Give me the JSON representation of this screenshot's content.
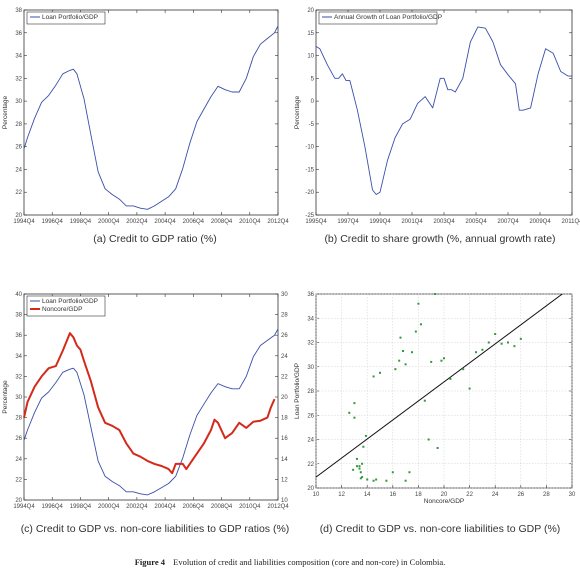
{
  "figure": {
    "label": "Figure 4",
    "text": "Evolution of credit and liabilities composition (core and non-core) in Colombia."
  },
  "colors": {
    "blue": "#3a4fa8",
    "red": "#d42a1c",
    "green": "#2f9a3c",
    "black": "#111111",
    "right_axis": "#d42a1c"
  },
  "chart_data": [
    {
      "id": "a",
      "type": "line",
      "caption": "(a) Credit to GDP ratio (%)",
      "ylabel": "Percentage",
      "xticks": [
        "1994Q4",
        "1996Q4",
        "1998Q4",
        "2000Q4",
        "2002Q4",
        "2004Q4",
        "2006Q4",
        "2008Q4",
        "2010Q4",
        "2012Q4"
      ],
      "xlim": [
        1994.75,
        2012.75
      ],
      "ylim": [
        20,
        38
      ],
      "yticks": [
        20,
        22,
        24,
        26,
        28,
        30,
        32,
        34,
        36,
        38
      ],
      "legend": [
        "Loan Portfolio/GDP"
      ],
      "series": [
        {
          "name": "Loan Portfolio/GDP",
          "color": "blue",
          "x": [
            1994.75,
            1995.0,
            1995.5,
            1996.0,
            1996.5,
            1997.0,
            1997.5,
            1998.0,
            1998.25,
            1998.5,
            1999.0,
            1999.5,
            2000.0,
            2000.5,
            2001.0,
            2001.5,
            2002.0,
            2002.5,
            2003.0,
            2003.5,
            2004.0,
            2004.5,
            2005.0,
            2005.5,
            2006.0,
            2006.5,
            2007.0,
            2007.5,
            2008.0,
            2008.5,
            2009.0,
            2009.5,
            2010.0,
            2010.5,
            2011.0,
            2011.5,
            2012.0,
            2012.5,
            2012.75
          ],
          "y": [
            25.8,
            26.8,
            28.5,
            29.9,
            30.5,
            31.4,
            32.4,
            32.7,
            32.8,
            32.4,
            30.2,
            27.0,
            23.8,
            22.3,
            21.8,
            21.4,
            20.8,
            20.8,
            20.6,
            20.5,
            20.8,
            21.2,
            21.6,
            22.3,
            24.1,
            26.3,
            28.2,
            29.3,
            30.4,
            31.3,
            31.0,
            30.8,
            30.8,
            32.0,
            33.9,
            35.0,
            35.5,
            36.0,
            36.6
          ]
        }
      ]
    },
    {
      "id": "b",
      "type": "line",
      "caption": "(b) Credit to share growth (%, annual growth rate)",
      "ylabel": "Percentage",
      "xticks": [
        "1995Q4",
        "1997Q4",
        "1999Q4",
        "2001Q4",
        "2003Q4",
        "2005Q4",
        "2007Q4",
        "2009Q4",
        "2011Q4"
      ],
      "xlim": [
        1995.75,
        2012.75
      ],
      "ylim": [
        -25,
        20
      ],
      "yticks": [
        -25,
        -20,
        -15,
        -10,
        -5,
        0,
        5,
        10,
        15,
        20
      ],
      "legend": [
        "Annual Growth of Loan Portfolio/GDP"
      ],
      "series": [
        {
          "name": "Annual Growth of Loan Portfolio/GDP",
          "color": "blue",
          "x": [
            1995.75,
            1996.0,
            1996.5,
            1997.0,
            1997.25,
            1997.5,
            1997.75,
            1998.0,
            1998.5,
            1999.0,
            1999.5,
            1999.75,
            2000.0,
            2000.5,
            2001.0,
            2001.5,
            2002.0,
            2002.5,
            2003.0,
            2003.5,
            2004.0,
            2004.25,
            2004.5,
            2004.75,
            2005.0,
            2005.5,
            2006.0,
            2006.5,
            2007.0,
            2007.5,
            2008.0,
            2008.5,
            2009.0,
            2009.25,
            2009.5,
            2010.0,
            2010.5,
            2011.0,
            2011.5,
            2012.0,
            2012.5,
            2012.75
          ],
          "y": [
            12.0,
            11.5,
            8.0,
            5.0,
            5.0,
            6.0,
            4.5,
            4.5,
            -2.0,
            -10.0,
            -19.5,
            -20.5,
            -20.0,
            -13.0,
            -8.0,
            -5.0,
            -4.0,
            -0.5,
            1.0,
            -1.5,
            5.0,
            5.0,
            2.5,
            2.5,
            2.0,
            5.0,
            13.0,
            16.3,
            16.0,
            13.0,
            8.0,
            5.8,
            3.8,
            -2.0,
            -2.0,
            -1.5,
            6.0,
            11.5,
            10.5,
            6.5,
            5.5,
            5.5
          ]
        }
      ]
    },
    {
      "id": "c",
      "type": "line",
      "caption": "(c) Credit to GDP vs. non-core liabilities to GDP ratios (%)",
      "ylabel": "Percentage",
      "xticks": [
        "1994Q4",
        "1996Q4",
        "1998Q4",
        "2000Q4",
        "2002Q4",
        "2004Q4",
        "2006Q4",
        "2008Q4",
        "2010Q4",
        "2012Q4"
      ],
      "xlim": [
        1994.75,
        2012.75
      ],
      "ylim": [
        20,
        40
      ],
      "yticks": [
        20,
        22,
        24,
        26,
        28,
        30,
        32,
        34,
        36,
        38,
        40
      ],
      "y2lim": [
        10,
        30
      ],
      "y2ticks": [
        10,
        12,
        14,
        16,
        18,
        20,
        22,
        24,
        26,
        28,
        30
      ],
      "legend": [
        "Loan Portfolio/GDP",
        "Noncore/GDP"
      ],
      "series": [
        {
          "name": "Loan Portfolio/GDP",
          "color": "blue",
          "axis": "left",
          "x": [
            1994.75,
            1995.0,
            1995.5,
            1996.0,
            1996.5,
            1997.0,
            1997.5,
            1998.0,
            1998.25,
            1998.5,
            1999.0,
            1999.5,
            2000.0,
            2000.5,
            2001.0,
            2001.5,
            2002.0,
            2002.5,
            2003.0,
            2003.5,
            2004.0,
            2004.5,
            2005.0,
            2005.5,
            2006.0,
            2006.5,
            2007.0,
            2007.5,
            2008.0,
            2008.5,
            2009.0,
            2009.5,
            2010.0,
            2010.5,
            2011.0,
            2011.5,
            2012.0,
            2012.5,
            2012.75
          ],
          "y": [
            25.8,
            26.8,
            28.5,
            29.9,
            30.5,
            31.4,
            32.4,
            32.7,
            32.8,
            32.4,
            30.2,
            27.0,
            23.8,
            22.3,
            21.8,
            21.4,
            20.8,
            20.8,
            20.6,
            20.5,
            20.8,
            21.2,
            21.6,
            22.3,
            24.1,
            26.3,
            28.2,
            29.3,
            30.4,
            31.3,
            31.0,
            30.8,
            30.8,
            32.0,
            33.9,
            35.0,
            35.5,
            36.0,
            36.6
          ]
        },
        {
          "name": "Noncore/GDP",
          "color": "red",
          "axis": "right",
          "x": [
            1994.75,
            1995.0,
            1995.5,
            1996.0,
            1996.5,
            1997.0,
            1997.5,
            1998.0,
            1998.25,
            1998.5,
            1998.75,
            1999.0,
            1999.5,
            2000.0,
            2000.5,
            2001.0,
            2001.5,
            2002.0,
            2002.5,
            2003.0,
            2003.5,
            2004.0,
            2004.5,
            2005.0,
            2005.25,
            2005.5,
            2006.0,
            2006.25,
            2006.5,
            2007.0,
            2007.5,
            2008.0,
            2008.25,
            2008.5,
            2009.0,
            2009.5,
            2010.0,
            2010.5,
            2011.0,
            2011.5,
            2012.0,
            2012.25,
            2012.5
          ],
          "y": [
            18.0,
            19.5,
            21.0,
            22.0,
            22.8,
            23.0,
            24.5,
            26.2,
            25.8,
            25.0,
            24.6,
            23.5,
            21.5,
            19.0,
            17.5,
            17.2,
            16.8,
            15.5,
            14.5,
            14.2,
            13.8,
            13.5,
            13.3,
            13.0,
            12.6,
            13.5,
            13.5,
            13.0,
            13.5,
            14.5,
            15.5,
            16.8,
            17.8,
            17.5,
            16.0,
            16.5,
            17.5,
            17.0,
            17.6,
            17.7,
            18.0,
            19.0,
            19.8
          ]
        }
      ]
    },
    {
      "id": "d",
      "type": "scatter",
      "caption": "(d) Credit to GDP vs. non-core liabilities to GDP (%)",
      "xlabel": "Noncore/GDP",
      "ylabel": "Loan Portfolio/GDP",
      "xlim": [
        10,
        30
      ],
      "ylim": [
        20,
        36
      ],
      "xticks": [
        10,
        12,
        14,
        16,
        18,
        20,
        22,
        24,
        26,
        28,
        30
      ],
      "yticks": [
        20,
        22,
        24,
        26,
        28,
        30,
        32,
        34,
        36
      ],
      "fit_line": {
        "x": [
          10,
          30
        ],
        "y": [
          20.9,
          36.6
        ]
      },
      "series": [
        {
          "name": "",
          "color": "green",
          "x": [
            12.6,
            13.0,
            13.0,
            13.2,
            13.4,
            13.5,
            13.5,
            13.6,
            13.7,
            13.9,
            14.5,
            14.5,
            14.7,
            15.0,
            15.5,
            16.0,
            16.2,
            16.5,
            16.6,
            16.8,
            17.0,
            17.0,
            17.3,
            17.5,
            17.8,
            18.0,
            18.2,
            18.5,
            18.8,
            19.0,
            19.3,
            19.5,
            19.8,
            20.0,
            20.5,
            21.5,
            22.0,
            22.5,
            23.0,
            23.5,
            24.0,
            24.5,
            25.0,
            25.5,
            26.0,
            13.2,
            13.4,
            13.6,
            14.0,
            12.9
          ],
          "y": [
            26.2,
            25.8,
            27.0,
            21.8,
            21.6,
            21.3,
            20.8,
            22.0,
            23.4,
            24.3,
            20.6,
            29.2,
            20.7,
            29.5,
            20.6,
            21.3,
            29.8,
            30.5,
            32.4,
            31.3,
            30.2,
            20.6,
            21.3,
            31.2,
            32.9,
            35.2,
            33.5,
            27.2,
            24.0,
            30.4,
            36.0,
            23.3,
            30.5,
            30.7,
            29.0,
            29.8,
            28.2,
            31.2,
            31.4,
            32.0,
            32.7,
            31.9,
            32.0,
            31.7,
            32.3,
            22.4,
            21.8,
            20.9,
            20.7,
            21.5
          ]
        }
      ]
    }
  ]
}
